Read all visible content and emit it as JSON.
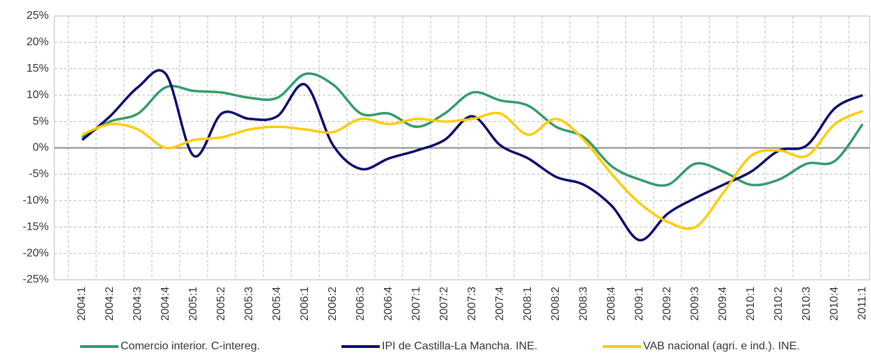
{
  "chart_data": {
    "type": "line",
    "categories": [
      "2004:1",
      "2004:2",
      "2004:3",
      "2004:4",
      "2005:1",
      "2005:2",
      "2005:3",
      "2005:4",
      "2006:1",
      "2006:2",
      "2006:3",
      "2006:4",
      "2007:1",
      "2007:2",
      "2007:3",
      "2007:4",
      "2008:1",
      "2008:2",
      "2008:3",
      "2008:4",
      "2009:1",
      "2009:2",
      "2009:3",
      "2009:4",
      "2010:1",
      "2010:2",
      "2010:3",
      "2010:4",
      "2011:1"
    ],
    "series": [
      {
        "name": "Comercio interior. C-intereg.",
        "color": "#339b6b",
        "values": [
          2,
          5,
          6.5,
          11.5,
          10.8,
          10.5,
          9.5,
          9.5,
          14,
          12,
          6.5,
          6.5,
          4,
          6.5,
          10.5,
          9,
          8,
          4,
          2,
          -3.5,
          -6,
          -7,
          -3,
          -4.5,
          -7,
          -6,
          -3,
          -2.5,
          4.5
        ]
      },
      {
        "name": "IPI de Castilla-La Mancha. INE.",
        "color": "#0a0a6e",
        "values": [
          1.5,
          6,
          11.5,
          14,
          -1.5,
          6.5,
          5.5,
          6,
          12,
          0.5,
          -4,
          -2,
          -0.5,
          1.5,
          6,
          0.5,
          -2,
          -5.5,
          -7,
          -11,
          -17.5,
          -12.5,
          -9.5,
          -7,
          -4.5,
          -0.5,
          0.5,
          7.5,
          10
        ]
      },
      {
        "name": "VAB nacional (agri. e ind.). INE.",
        "color": "#ffcc00",
        "values": [
          2.5,
          4.5,
          3.5,
          0,
          1.5,
          2,
          3.5,
          4,
          3.5,
          3,
          5.5,
          4.5,
          5.5,
          5,
          5.5,
          6.5,
          2.5,
          5.5,
          1.5,
          -5,
          -10.5,
          -14,
          -15,
          -8.5,
          -1.5,
          -0.5,
          -1.5,
          4.5,
          7
        ]
      }
    ],
    "ylim": [
      -25,
      25
    ],
    "yticks": [
      {
        "value": -25,
        "label": "-25%"
      },
      {
        "value": -20,
        "label": "-20%"
      },
      {
        "value": -15,
        "label": "-15%"
      },
      {
        "value": -10,
        "label": "-10%"
      },
      {
        "value": -5,
        "label": "-5%"
      },
      {
        "value": 0,
        "label": "0%"
      },
      {
        "value": 5,
        "label": "5%"
      },
      {
        "value": 10,
        "label": "10%"
      },
      {
        "value": 15,
        "label": "15%"
      },
      {
        "value": 20,
        "label": "20%"
      },
      {
        "value": 25,
        "label": "25%"
      }
    ],
    "grid": true
  }
}
